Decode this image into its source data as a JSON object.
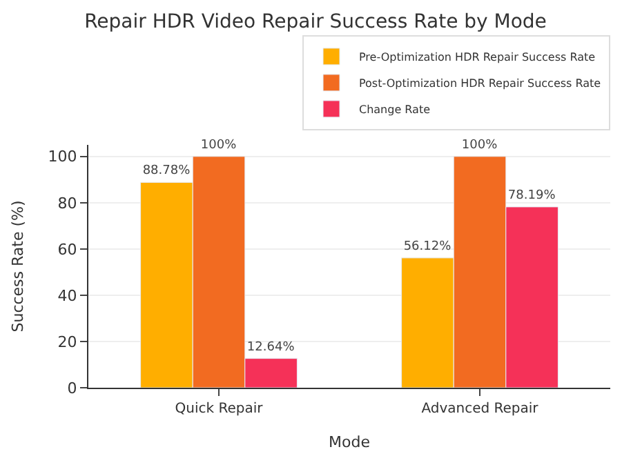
{
  "chart_data": {
    "type": "bar",
    "title": "Repair HDR Video Repair Success Rate by Mode",
    "xlabel": "Mode",
    "ylabel": "Success Rate (%)",
    "categories": [
      "Quick Repair",
      "Advanced Repair"
    ],
    "series": [
      {
        "name": "Pre-Optimization HDR Repair Success Rate",
        "color": "#ffae00",
        "values": [
          88.78,
          56.12
        ],
        "value_labels": [
          "88.78%",
          "56.12%"
        ]
      },
      {
        "name": "Post-Optimization HDR Repair Success Rate",
        "color": "#f26b21",
        "values": [
          100,
          100
        ],
        "value_labels": [
          "100%",
          "100%"
        ]
      },
      {
        "name": "Change Rate",
        "color": "#f53158",
        "values": [
          12.64,
          78.19
        ],
        "value_labels": [
          "12.64%",
          "78.19%"
        ]
      }
    ],
    "ylim": [
      0,
      105
    ],
    "yticks": [
      0,
      20,
      40,
      60,
      80,
      100
    ],
    "grid": "y",
    "legend": "top right"
  }
}
